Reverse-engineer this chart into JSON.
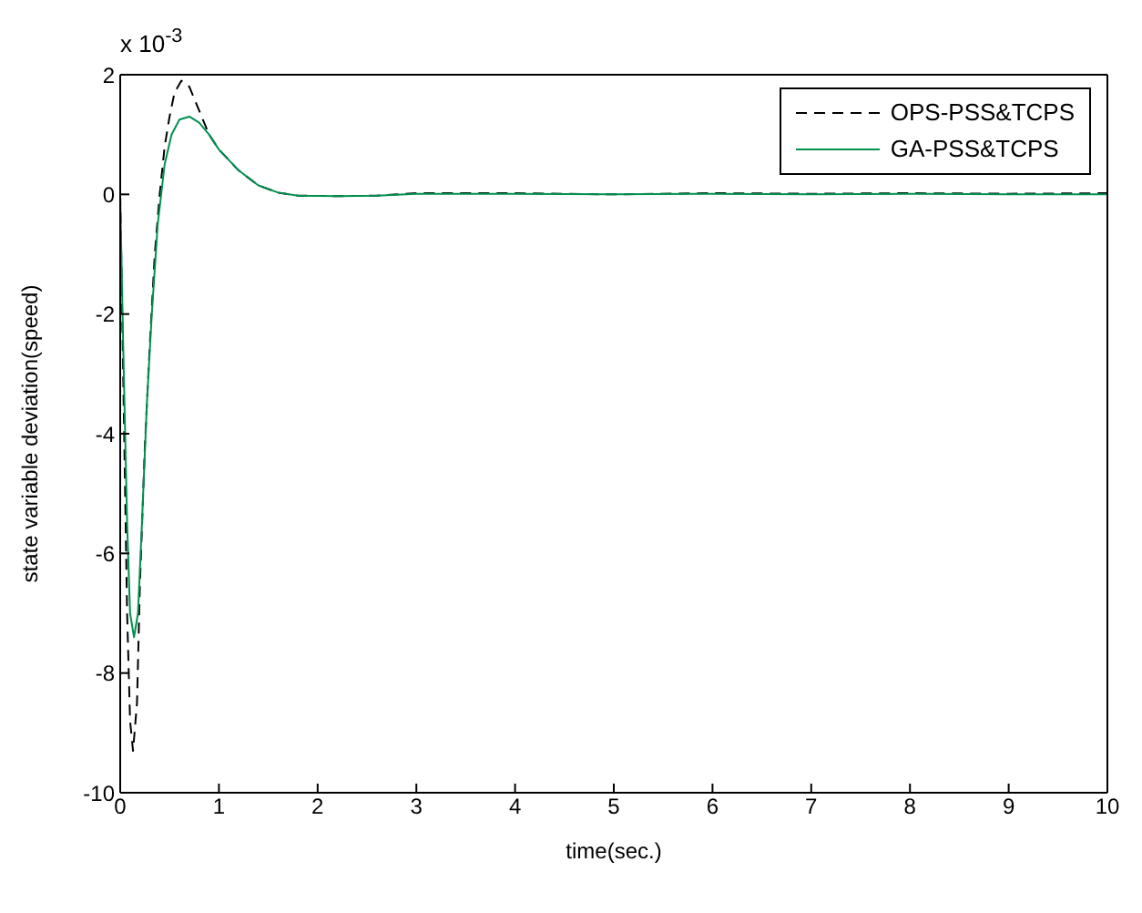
{
  "chart_data": {
    "type": "line",
    "xlabel": "time(sec.)",
    "ylabel": "state variable deviation(speed)",
    "annotations": [
      "x 10$^{-3}$"
    ],
    "xlim": [
      0,
      10
    ],
    "xticks": [
      0,
      1,
      2,
      3,
      4,
      5,
      6,
      7,
      8,
      9,
      10
    ],
    "ylim": [
      -10,
      2
    ],
    "yticks": [
      -10,
      -8,
      -6,
      -4,
      -2,
      0,
      2
    ],
    "grid": false,
    "legend": "top right",
    "marker": "none",
    "series": [
      {
        "name": "OPS-PSS&TCPS",
        "color": "#000000",
        "line_style": "dashed",
        "x": [
          0,
          0.03,
          0.07,
          0.1,
          0.13,
          0.17,
          0.2,
          0.25,
          0.3,
          0.35,
          0.4,
          0.45,
          0.5,
          0.55,
          0.62,
          0.7,
          0.8,
          0.9,
          1.0,
          1.2,
          1.4,
          1.6,
          1.8,
          2.2,
          2.6,
          3,
          4,
          5,
          6,
          7,
          8,
          9,
          10
        ],
        "values": [
          0,
          -3,
          -7,
          -8.8,
          -9.3,
          -8.5,
          -6.5,
          -4.2,
          -2.5,
          -1,
          0,
          0.8,
          1.3,
          1.7,
          1.9,
          1.8,
          1.4,
          1.0,
          0.75,
          0.4,
          0.15,
          0.03,
          -0.02,
          -0.03,
          -0.02,
          0.02,
          0.02,
          0,
          0.02,
          0.01,
          0.02,
          0.01,
          0.02
        ]
      },
      {
        "name": "GA-PSS&TCPS",
        "color": "#009050",
        "line_style": "solid",
        "x": [
          0,
          0.03,
          0.07,
          0.1,
          0.14,
          0.18,
          0.22,
          0.27,
          0.32,
          0.38,
          0.45,
          0.52,
          0.6,
          0.7,
          0.8,
          0.9,
          1.0,
          1.2,
          1.4,
          1.6,
          1.8,
          2.2,
          2.6,
          3,
          4,
          5,
          6,
          7,
          8,
          9,
          10
        ],
        "values": [
          0,
          -2.5,
          -5.5,
          -7,
          -7.4,
          -7,
          -5.5,
          -3.5,
          -2,
          -0.5,
          0.5,
          1.0,
          1.25,
          1.3,
          1.2,
          1.0,
          0.75,
          0.4,
          0.15,
          0.03,
          -0.02,
          -0.03,
          -0.02,
          0.01,
          0.01,
          0,
          0.01,
          0,
          0.01,
          0,
          0
        ]
      }
    ]
  }
}
